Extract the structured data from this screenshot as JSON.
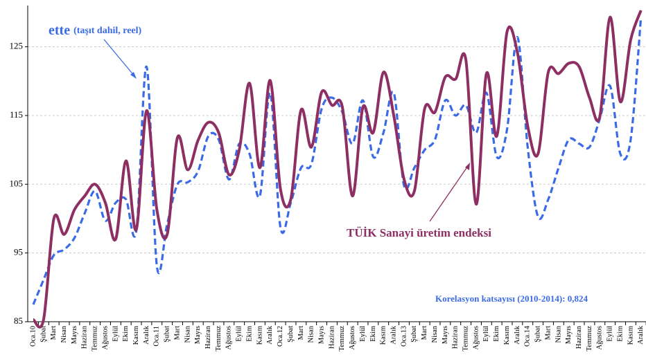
{
  "chart_data": {
    "type": "line",
    "categories": [
      "Oca.10",
      "Şubat",
      "Mart",
      "Nisan",
      "Mayıs",
      "Haziran",
      "Temmuz",
      "Ağustos",
      "Eylül",
      "Ekim",
      "Kasım",
      "Aralık",
      "Oca.11",
      "Şubat",
      "Mart",
      "Nisan",
      "Mayıs",
      "Haziran",
      "Temmuz",
      "Ağustos",
      "Eylül",
      "Ekim",
      "Kasım",
      "Aralık",
      "Oca.12",
      "Şubat",
      "Mart",
      "Nisan",
      "Mayıs",
      "Haziran",
      "Temmuz",
      "Ağustos",
      "Eylül",
      "Ekim",
      "Kasım",
      "Aralık",
      "Oca.13",
      "Şubat",
      "Mart",
      "Nisan",
      "Mayıs",
      "Haziran",
      "Temmuz",
      "Ağustos",
      "Eylül",
      "Ekim",
      "Kasım",
      "Aralık",
      "Oca.14",
      "Şubat",
      "Mart",
      "Nisan",
      "Mayıs",
      "Haziran",
      "Temmuz",
      "Ağustos",
      "Eylül",
      "Ekim",
      "Kasım",
      "Aralık"
    ],
    "series": [
      {
        "name": "ette",
        "name_note": "(taşıt dahil, reel)",
        "color": "#3a6ae6",
        "dashed": true,
        "values": [
          87.5,
          91.1,
          94.7,
          95.5,
          97.2,
          100.8,
          104,
          99.7,
          102.3,
          102.8,
          98.2,
          122.1,
          93.1,
          99.2,
          105,
          105.3,
          106.9,
          112,
          111.5,
          105.7,
          110.9,
          109.4,
          103.3,
          118.3,
          98.7,
          102.3,
          107.4,
          107.9,
          116,
          117.6,
          115.5,
          110.9,
          117.2,
          109,
          112.5,
          118.3,
          104.8,
          107.4,
          110,
          111.5,
          117.2,
          115,
          116.5,
          112.5,
          118.3,
          109,
          113,
          126.4,
          110.4,
          100.3,
          102.8,
          107.4,
          111.5,
          110.9,
          110.4,
          114.5,
          119.3,
          109.4,
          111.5,
          129.3
        ]
      },
      {
        "name": "TÜİK Sanayi üretim endeksi",
        "color": "#8e2f63",
        "dashed": false,
        "values": [
          85.3,
          85.3,
          100,
          97.7,
          101.3,
          103.3,
          105,
          102.3,
          97,
          108.4,
          98.4,
          115.7,
          101.3,
          97.7,
          111.8,
          107.1,
          111.4,
          114,
          112.5,
          106.4,
          110,
          119.7,
          107.4,
          120.1,
          104.3,
          102.8,
          115.8,
          110.4,
          118.4,
          116.5,
          116.3,
          103.3,
          116.2,
          112.5,
          121.3,
          115,
          105.7,
          104,
          116,
          115.5,
          120.6,
          120.3,
          123.1,
          102.1,
          121.1,
          112,
          127.2,
          124.2,
          113.5,
          109.4,
          121.3,
          121.1,
          122.6,
          122.1,
          117.6,
          114.8,
          129.3,
          117,
          126,
          130.3
        ]
      }
    ],
    "annotation": "Korelasyon katsayısı (2010-2014): 0,824",
    "ylim": [
      85,
      131
    ],
    "yticks": [
      85,
      95,
      105,
      115,
      125
    ],
    "grid": true
  }
}
